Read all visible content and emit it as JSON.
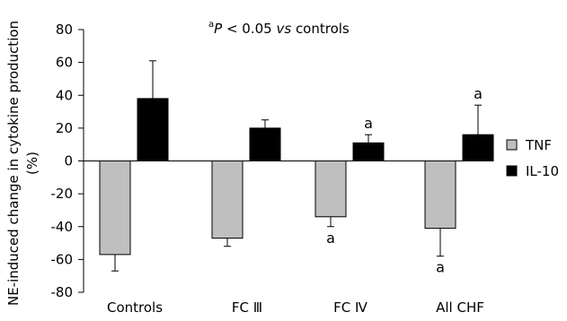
{
  "chart_data": {
    "type": "bar",
    "categories": [
      "Controls",
      "FC Ⅲ",
      "FC Ⅳ",
      "All CHF"
    ],
    "ylabel": "NE-induced change in cytokine production (%)",
    "ylabel_lines": [
      "NE-induced change in cytokine production",
      "(%)"
    ],
    "ylim": [
      -80,
      80
    ],
    "yticks": [
      80,
      60,
      40,
      20,
      0,
      -20,
      -40,
      -60,
      -80
    ],
    "ytick_labels": [
      "80",
      "60",
      "40",
      "20",
      "0",
      "-20",
      "-40",
      "-60",
      "-80"
    ],
    "note": {
      "prefix": "a",
      "text_p": "P",
      "text_mid": " < 0.05 ",
      "text_vs": "vs",
      "text_end": " controls"
    },
    "legend_position": "right",
    "series": [
      {
        "name": "TNF",
        "color": "#bfbfbf",
        "values": [
          -57,
          -47,
          -34,
          -41
        ],
        "errors": [
          10,
          5,
          6,
          17
        ],
        "annotations": [
          "",
          "",
          "a",
          "a"
        ]
      },
      {
        "name": "IL-10",
        "color": "#000000",
        "values": [
          38,
          20,
          11,
          16
        ],
        "errors": [
          23,
          5,
          5,
          18
        ],
        "annotations": [
          "",
          "",
          "a",
          "a"
        ]
      }
    ]
  }
}
